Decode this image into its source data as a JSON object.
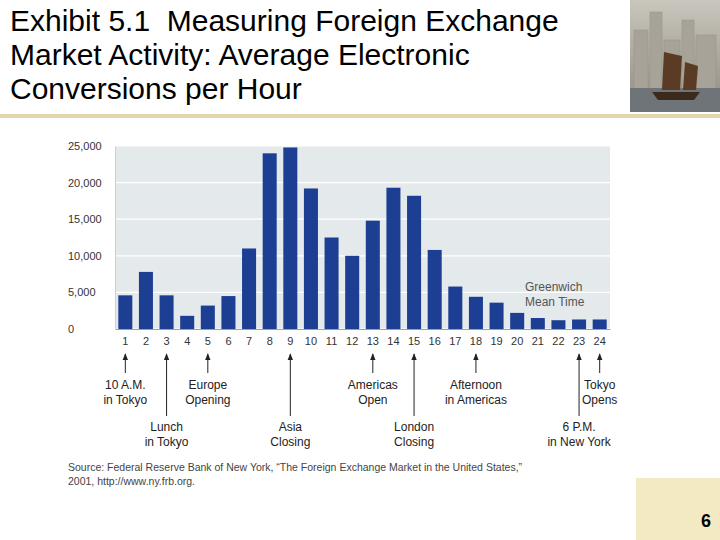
{
  "chart_data": {
    "type": "bar",
    "title": "Exhibit 5.1  Measuring Foreign Exchange Market Activity: Average Electronic Conversions per Hour",
    "x_label": "Greenwich Mean Time",
    "categories": [
      "1",
      "2",
      "3",
      "4",
      "5",
      "6",
      "7",
      "8",
      "9",
      "10",
      "11",
      "12",
      "13",
      "14",
      "15",
      "16",
      "17",
      "18",
      "19",
      "20",
      "21",
      "22",
      "23",
      "24"
    ],
    "values": [
      4600,
      7800,
      4600,
      1800,
      3200,
      4500,
      11000,
      24000,
      24800,
      19200,
      12500,
      10000,
      14800,
      19300,
      18200,
      10800,
      5800,
      4400,
      3600,
      2200,
      1500,
      1200,
      1300,
      1300
    ],
    "color": "#1c3f94",
    "ylim": [
      0,
      25000
    ],
    "yticks": [
      0,
      {
        "value": 5000,
        "label": "5,000"
      },
      {
        "value": 10000,
        "label": "10,000"
      },
      {
        "value": 15000,
        "label": "15,000"
      },
      {
        "value": 20000,
        "label": "20,000"
      },
      {
        "value": 25000,
        "label": "25,000"
      }
    ],
    "grid": true,
    "annotations": [
      {
        "at": "1",
        "text": [
          "10 A.M.",
          "in Tokyo"
        ]
      },
      {
        "at": "3",
        "text": [
          "Lunch",
          "in Tokyo"
        ]
      },
      {
        "at": "5",
        "text": [
          "Europe",
          "Opening"
        ]
      },
      {
        "at": "9",
        "text": [
          "Asia",
          "Closing"
        ]
      },
      {
        "at": "13",
        "text": [
          "Americas",
          "Open"
        ]
      },
      {
        "at": "15",
        "text": [
          "London",
          "Closing"
        ]
      },
      {
        "at": "18",
        "text": [
          "Afternoon",
          "in Americas"
        ]
      },
      {
        "at": "23",
        "text": [
          "6 P.M.",
          "in New York"
        ]
      },
      {
        "at": "24",
        "text": [
          "Tokyo",
          "Opens"
        ]
      }
    ],
    "source": [
      "Source: Federal Reserve Bank of New York, “The Foreign Exchange Market in the United States,”",
      "2001, http://www.ny.frb.org."
    ]
  },
  "page_number": 6
}
